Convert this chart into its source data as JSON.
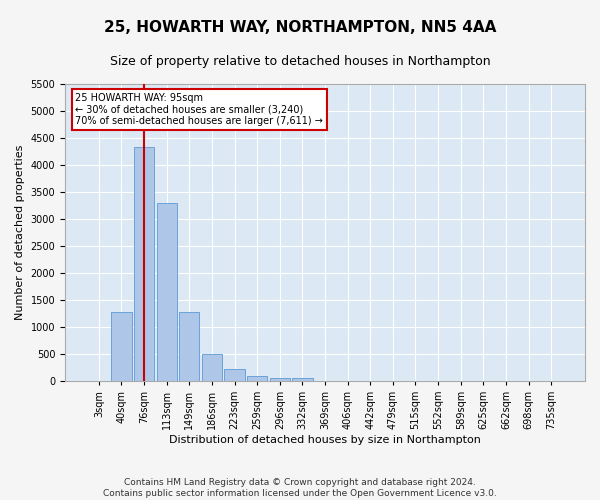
{
  "title1": "25, HOWARTH WAY, NORTHAMPTON, NN5 4AA",
  "title2": "Size of property relative to detached houses in Northampton",
  "xlabel": "Distribution of detached houses by size in Northampton",
  "ylabel": "Number of detached properties",
  "footnote": "Contains HM Land Registry data © Crown copyright and database right 2024.\nContains public sector information licensed under the Open Government Licence v3.0.",
  "categories": [
    "3sqm",
    "40sqm",
    "76sqm",
    "113sqm",
    "149sqm",
    "186sqm",
    "223sqm",
    "259sqm",
    "296sqm",
    "332sqm",
    "369sqm",
    "406sqm",
    "442sqm",
    "479sqm",
    "515sqm",
    "552sqm",
    "589sqm",
    "625sqm",
    "662sqm",
    "698sqm",
    "735sqm"
  ],
  "values": [
    0,
    1270,
    4330,
    3300,
    1280,
    490,
    220,
    90,
    60,
    55,
    0,
    0,
    0,
    0,
    0,
    0,
    0,
    0,
    0,
    0,
    0
  ],
  "bar_color": "#aec6e8",
  "bar_edge_color": "#5b9bd5",
  "annotation_text": "25 HOWARTH WAY: 95sqm\n← 30% of detached houses are smaller (3,240)\n70% of semi-detached houses are larger (7,611) →",
  "annotation_box_color": "#ffffff",
  "annotation_box_edge": "#cc0000",
  "vline_x": 2.0,
  "vline_color": "#cc0000",
  "ylim": [
    0,
    5500
  ],
  "yticks": [
    0,
    500,
    1000,
    1500,
    2000,
    2500,
    3000,
    3500,
    4000,
    4500,
    5000,
    5500
  ],
  "plot_bg_color": "#dce9f5",
  "grid_color": "#ffffff",
  "title1_fontsize": 11,
  "title2_fontsize": 9,
  "label_fontsize": 8,
  "tick_fontsize": 7,
  "footnote_fontsize": 6.5
}
